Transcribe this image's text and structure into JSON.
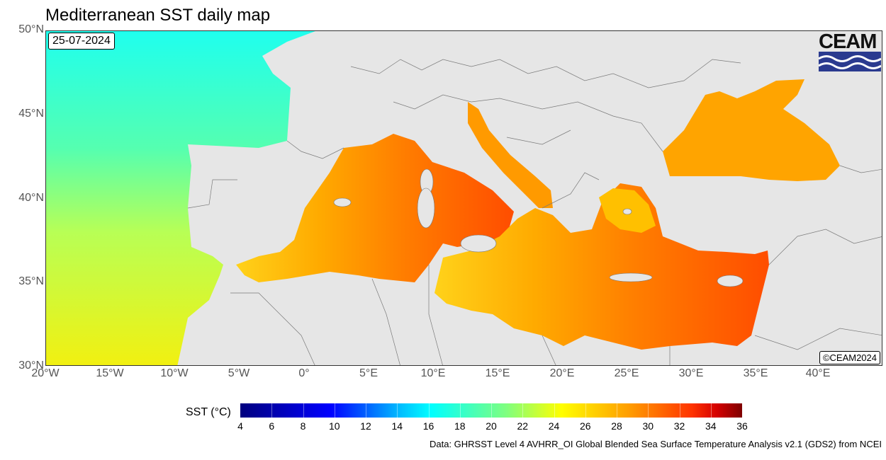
{
  "title": "Mediterranean SST daily map",
  "date": "25-07-2024",
  "copyright": "©CEAM2024",
  "logo_text": "CEAM",
  "map": {
    "lat_labels": [
      "50°N",
      "45°N",
      "40°N",
      "35°N",
      "30°N"
    ],
    "lon_labels": [
      "20°W",
      "15°W",
      "10°W",
      "5°W",
      "0°",
      "5°E",
      "10°E",
      "15°E",
      "20°E",
      "25°E",
      "30°E",
      "35°E",
      "40°E"
    ],
    "lat_range": [
      30,
      50
    ],
    "lon_range": [
      -20,
      45
    ]
  },
  "colorbar": {
    "label": "SST (°C)",
    "min": 4,
    "max": 36,
    "ticks": [
      "4",
      "6",
      "8",
      "10",
      "12",
      "14",
      "16",
      "18",
      "20",
      "22",
      "24",
      "26",
      "28",
      "30",
      "32",
      "34",
      "36"
    ]
  },
  "credit": "Data: GHRSST Level 4 AVHRR_OI Global Blended Sea Surface Temperature Analysis v2.1 (GDS2) from NCEI",
  "colors": {
    "land": "#e6e6e6",
    "atlantic_north": "#22ffee",
    "atlantic_south": "#eef510",
    "med_west": "#ffc400",
    "med_east": "#ff7a00",
    "levant": "#ff4a00",
    "black_sea": "#ffa000"
  }
}
